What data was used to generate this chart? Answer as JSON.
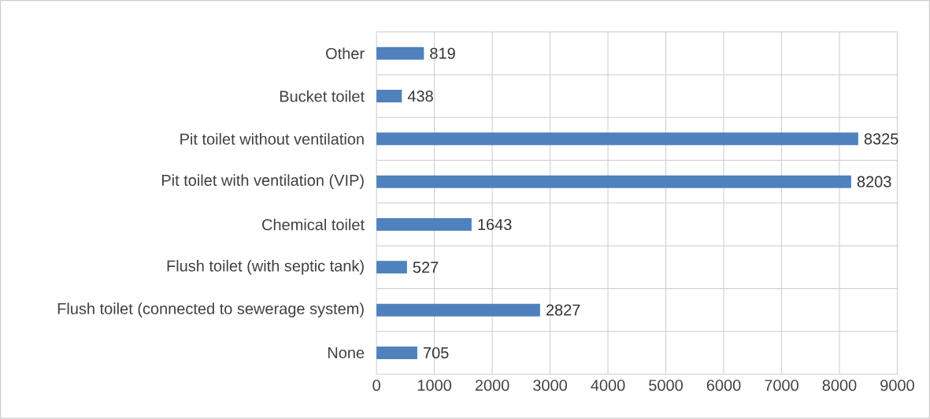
{
  "chart_data": {
    "type": "bar",
    "orientation": "horizontal",
    "categories": [
      "Other",
      "Bucket toilet",
      "Pit toilet without ventilation",
      "Pit toilet with ventilation (VIP)",
      "Chemical toilet",
      "Flush toilet (with septic tank)",
      "Flush toilet (connected to sewerage system)",
      "None"
    ],
    "values": [
      819,
      438,
      8325,
      8203,
      1643,
      527,
      2827,
      705
    ],
    "color": "#4f81bd",
    "data_labels": true,
    "grid": true,
    "xlim": [
      0,
      9000
    ],
    "xticks": [
      0,
      1000,
      2000,
      3000,
      4000,
      5000,
      6000,
      7000,
      8000,
      9000
    ]
  }
}
